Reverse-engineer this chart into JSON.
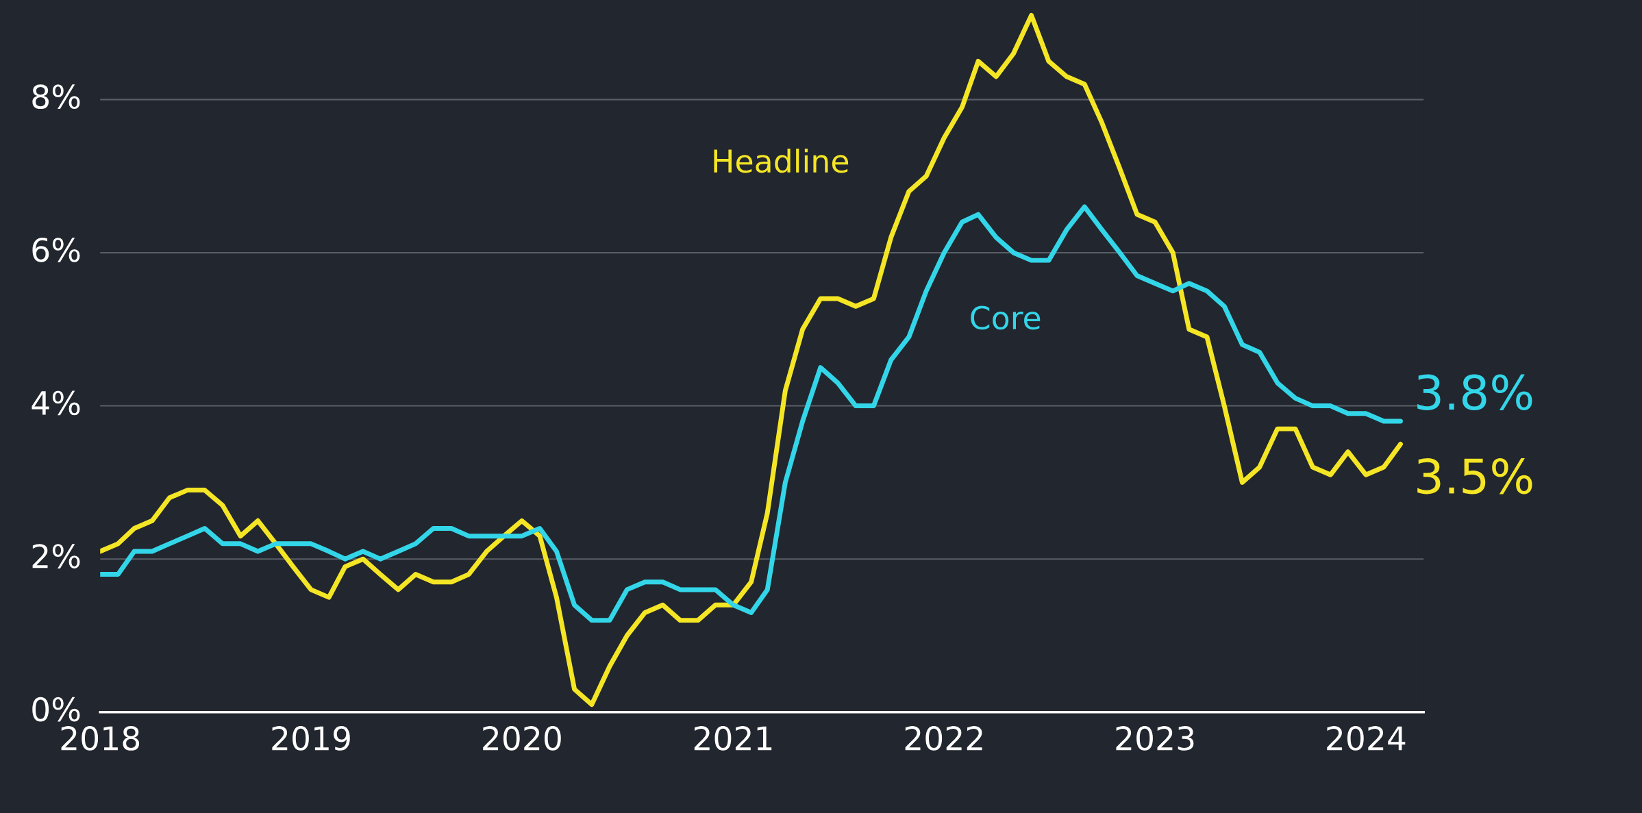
{
  "chart_data": {
    "type": "line",
    "x": [
      "2018-01",
      "2018-02",
      "2018-03",
      "2018-04",
      "2018-05",
      "2018-06",
      "2018-07",
      "2018-08",
      "2018-09",
      "2018-10",
      "2018-11",
      "2018-12",
      "2019-01",
      "2019-02",
      "2019-03",
      "2019-04",
      "2019-05",
      "2019-06",
      "2019-07",
      "2019-08",
      "2019-09",
      "2019-10",
      "2019-11",
      "2019-12",
      "2020-01",
      "2020-02",
      "2020-03",
      "2020-04",
      "2020-05",
      "2020-06",
      "2020-07",
      "2020-08",
      "2020-09",
      "2020-10",
      "2020-11",
      "2020-12",
      "2021-01",
      "2021-02",
      "2021-03",
      "2021-04",
      "2021-05",
      "2021-06",
      "2021-07",
      "2021-08",
      "2021-09",
      "2021-10",
      "2021-11",
      "2021-12",
      "2022-01",
      "2022-02",
      "2022-03",
      "2022-04",
      "2022-05",
      "2022-06",
      "2022-07",
      "2022-08",
      "2022-09",
      "2022-10",
      "2022-11",
      "2022-12",
      "2023-01",
      "2023-02",
      "2023-03",
      "2023-04",
      "2023-05",
      "2023-06",
      "2023-07",
      "2023-08",
      "2023-09",
      "2023-10",
      "2023-11",
      "2023-12",
      "2024-01",
      "2024-02",
      "2024-03"
    ],
    "series": [
      {
        "name": "Headline",
        "color": "#f5e625",
        "values": [
          2.1,
          2.2,
          2.4,
          2.5,
          2.8,
          2.9,
          2.9,
          2.7,
          2.3,
          2.5,
          2.2,
          1.9,
          1.6,
          1.5,
          1.9,
          2.0,
          1.8,
          1.6,
          1.8,
          1.7,
          1.7,
          1.8,
          2.1,
          2.3,
          2.5,
          2.3,
          1.5,
          0.3,
          0.1,
          0.6,
          1.0,
          1.3,
          1.4,
          1.2,
          1.2,
          1.4,
          1.4,
          1.7,
          2.6,
          4.2,
          5.0,
          5.4,
          5.4,
          5.3,
          5.4,
          6.2,
          6.8,
          7.0,
          7.5,
          7.9,
          8.5,
          8.3,
          8.6,
          9.1,
          8.5,
          8.3,
          8.2,
          7.7,
          7.1,
          6.5,
          6.4,
          6.0,
          5.0,
          4.9,
          4.0,
          3.0,
          3.2,
          3.7,
          3.7,
          3.2,
          3.1,
          3.4,
          3.1,
          3.2,
          3.5
        ],
        "value_labels": [
          null,
          null,
          null,
          null,
          null,
          null,
          null,
          null,
          null,
          null,
          null,
          null,
          null,
          null,
          null,
          null,
          null,
          null,
          null,
          null,
          null,
          null,
          null,
          null,
          null,
          null,
          null,
          null,
          null,
          null,
          null,
          null,
          null,
          null,
          null,
          null,
          null,
          null,
          null,
          null,
          null,
          null,
          null,
          null,
          null,
          null,
          null,
          null,
          null,
          null,
          null,
          null,
          null,
          null,
          null,
          null,
          null,
          null,
          null,
          null,
          null,
          null,
          null,
          null,
          null,
          null,
          null,
          null,
          null,
          null,
          null,
          null,
          null,
          null,
          "3.5%"
        ]
      },
      {
        "name": "Core",
        "color": "#33d6e8",
        "values": [
          1.8,
          1.8,
          2.1,
          2.1,
          2.2,
          2.3,
          2.4,
          2.2,
          2.2,
          2.1,
          2.2,
          2.2,
          2.2,
          2.1,
          2.0,
          2.1,
          2.0,
          2.1,
          2.2,
          2.4,
          2.4,
          2.3,
          2.3,
          2.3,
          2.3,
          2.4,
          2.1,
          1.4,
          1.2,
          1.2,
          1.6,
          1.7,
          1.7,
          1.6,
          1.6,
          1.6,
          1.4,
          1.3,
          1.6,
          3.0,
          3.8,
          4.5,
          4.3,
          4.0,
          4.0,
          4.6,
          4.9,
          5.5,
          6.0,
          6.4,
          6.5,
          6.2,
          6.0,
          5.9,
          5.9,
          6.3,
          6.6,
          6.3,
          6.0,
          5.7,
          5.6,
          5.5,
          5.6,
          5.5,
          5.3,
          4.8,
          4.7,
          4.3,
          4.1,
          4.0,
          4.0,
          3.9,
          3.9,
          3.8,
          3.8
        ],
        "value_labels": [
          null,
          null,
          null,
          null,
          null,
          null,
          null,
          null,
          null,
          null,
          null,
          null,
          null,
          null,
          null,
          null,
          null,
          null,
          null,
          null,
          null,
          null,
          null,
          null,
          null,
          null,
          null,
          null,
          null,
          null,
          null,
          null,
          null,
          null,
          null,
          null,
          null,
          null,
          null,
          null,
          null,
          null,
          null,
          null,
          null,
          null,
          null,
          null,
          null,
          null,
          null,
          null,
          null,
          null,
          null,
          null,
          null,
          null,
          null,
          null,
          null,
          null,
          null,
          null,
          null,
          null,
          null,
          null,
          null,
          null,
          null,
          null,
          null,
          null,
          "3.8%"
        ]
      }
    ],
    "xlim": [
      "2018-01",
      "2024-04-10"
    ],
    "xticks": [
      {
        "value": "2018-01",
        "label": "2018"
      },
      {
        "value": "2019-01",
        "label": "2019"
      },
      {
        "value": "2020-01",
        "label": "2020"
      },
      {
        "value": "2021-01",
        "label": "2021"
      },
      {
        "value": "2022-01",
        "label": "2022"
      },
      {
        "value": "2023-01",
        "label": "2023"
      },
      {
        "value": "2024-01",
        "label": "2024"
      }
    ],
    "ylim": [
      0,
      9.3
    ],
    "yticks": [
      {
        "value": 0,
        "label": "0%"
      },
      {
        "value": 2,
        "label": "2%"
      },
      {
        "value": 4,
        "label": "4%"
      },
      {
        "value": 6,
        "label": "6%"
      },
      {
        "value": 8,
        "label": "8%"
      }
    ],
    "grid": "y",
    "legend": false,
    "marker": "none",
    "line_style": "solid"
  }
}
